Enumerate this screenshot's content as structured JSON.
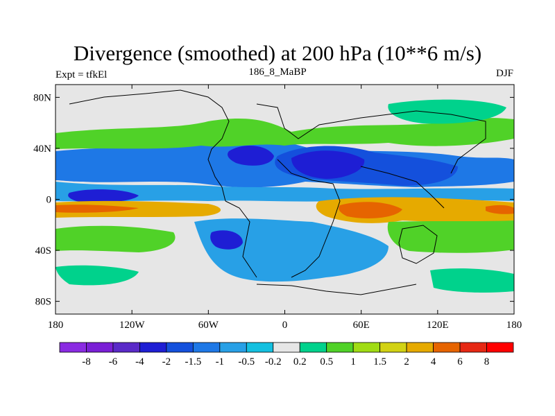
{
  "header": {
    "title": "Divergence (smoothed) at 200 hPa (10**6 m/s)",
    "left": "Expt = tfkEl",
    "center": "186_8_MaBP",
    "right": "DJF"
  },
  "chart_data": {
    "type": "heatmap",
    "title": "Divergence (smoothed) at 200 hPa (10**6 m/s)",
    "xlabel": "",
    "ylabel": "",
    "xlim": [
      -180,
      180
    ],
    "ylim": [
      -90,
      90
    ],
    "x_ticks": [
      -180,
      -120,
      -60,
      0,
      60,
      120,
      180
    ],
    "x_tick_labels": [
      "180",
      "120W",
      "60W",
      "0",
      "60E",
      "120E",
      "180"
    ],
    "y_ticks": [
      80,
      40,
      0,
      -40,
      -80
    ],
    "y_tick_labels": [
      "80N",
      "40N",
      "0",
      "40S",
      "80S"
    ],
    "colorbar": {
      "labels": [
        "-8",
        "-6",
        "-4",
        "-2",
        "-1.5",
        "-1",
        "-0.5",
        "-0.2",
        "0.2",
        "0.5",
        "1",
        "1.5",
        "2",
        "4",
        "6",
        "8"
      ],
      "colors": [
        "#8a2be2",
        "#7a1fd6",
        "#5a2ac8",
        "#1e1ed4",
        "#1450dc",
        "#1e78e6",
        "#28a0e6",
        "#14c0e0",
        "#e6e6e6",
        "#00d28c",
        "#50d228",
        "#a0dc14",
        "#d2d214",
        "#e6aa00",
        "#e66400",
        "#e62814",
        "#ff0000"
      ]
    }
  }
}
